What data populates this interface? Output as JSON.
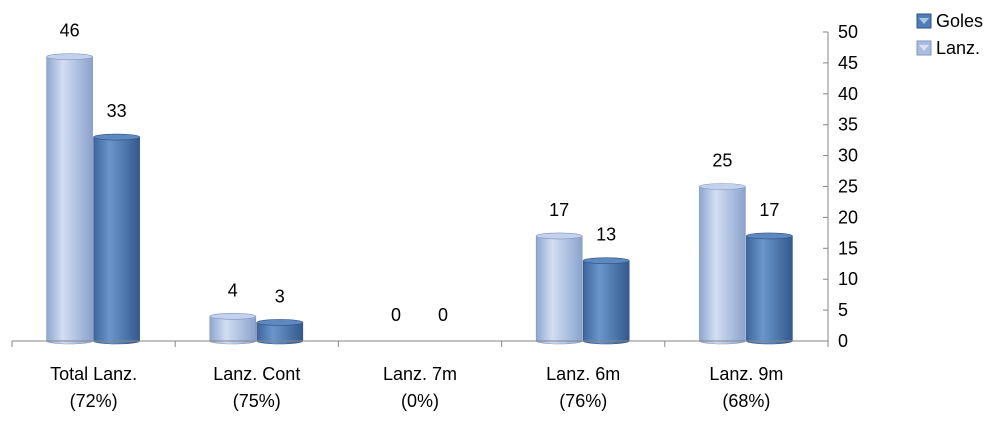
{
  "chart_data": {
    "type": "bar",
    "categories": [
      "Total Lanz.\n(72%)",
      "Lanz. Cont\n(75%)",
      "Lanz. 7m\n(0%)",
      "Lanz. 6m\n(76%)",
      "Lanz. 9m\n(68%)"
    ],
    "series": [
      {
        "name": "Lanz.",
        "values": [
          46,
          4,
          0,
          17,
          25
        ],
        "color": "#a8bde0"
      },
      {
        "name": "Goles",
        "values": [
          33,
          3,
          0,
          13,
          17
        ],
        "color": "#4f7fba"
      }
    ],
    "ylim": [
      0,
      50
    ],
    "yticks": [
      0,
      5,
      10,
      15,
      20,
      25,
      30,
      35,
      40,
      45,
      50
    ],
    "y_axis_side": "right",
    "legend": {
      "position": "top-right",
      "order": [
        "Goles",
        "Lanz."
      ]
    },
    "data_labels": true,
    "grid": false
  }
}
